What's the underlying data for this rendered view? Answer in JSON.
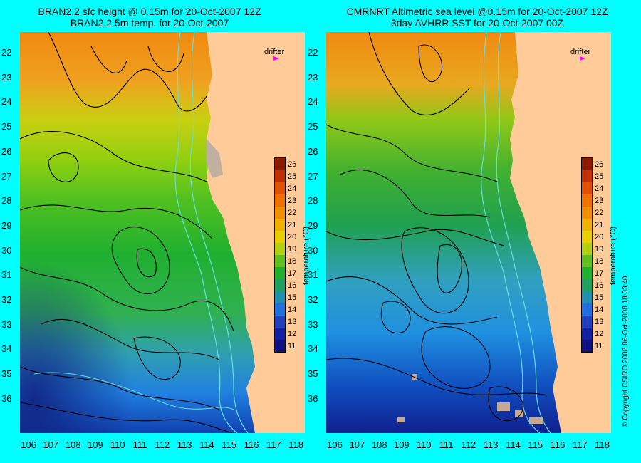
{
  "titles": {
    "left_line1": "BRAN2.2 sfc height @ 0.15m for 20-Oct-2007 12Z",
    "left_line2": "BRAN2.2 5m temp. for 20-Oct-2007",
    "right_line1": "CMRNRT Altimetric sea level  @0.15m  for 20-Oct-2007 12Z",
    "right_line2": "3day AVHRR SST for 20-Oct-2007 00Z"
  },
  "latitudes": [
    "22",
    "23",
    "24",
    "25",
    "26",
    "27",
    "28",
    "29",
    "30",
    "31",
    "32",
    "33",
    "34",
    "35",
    "36"
  ],
  "longitudes": [
    "106",
    "107",
    "108",
    "109",
    "110",
    "111",
    "112",
    "113",
    "114",
    "115",
    "116",
    "117",
    "118"
  ],
  "colorbar": {
    "title": "temperature (°C)",
    "ticks": [
      "26",
      "25",
      "24",
      "23",
      "22",
      "21",
      "20",
      "19",
      "18",
      "17",
      "16",
      "15",
      "14",
      "13",
      "12",
      "11"
    ]
  },
  "drifter_label": "drifter",
  "copyright": "© Copyright CSIRO 2008    06-Oct-2008 18:03:40",
  "colors": {
    "background": "#00ffff",
    "land": "#ffcc99",
    "contour": "#000000",
    "bathymetry": "#66dddd",
    "drifter": "#ff00ff"
  }
}
